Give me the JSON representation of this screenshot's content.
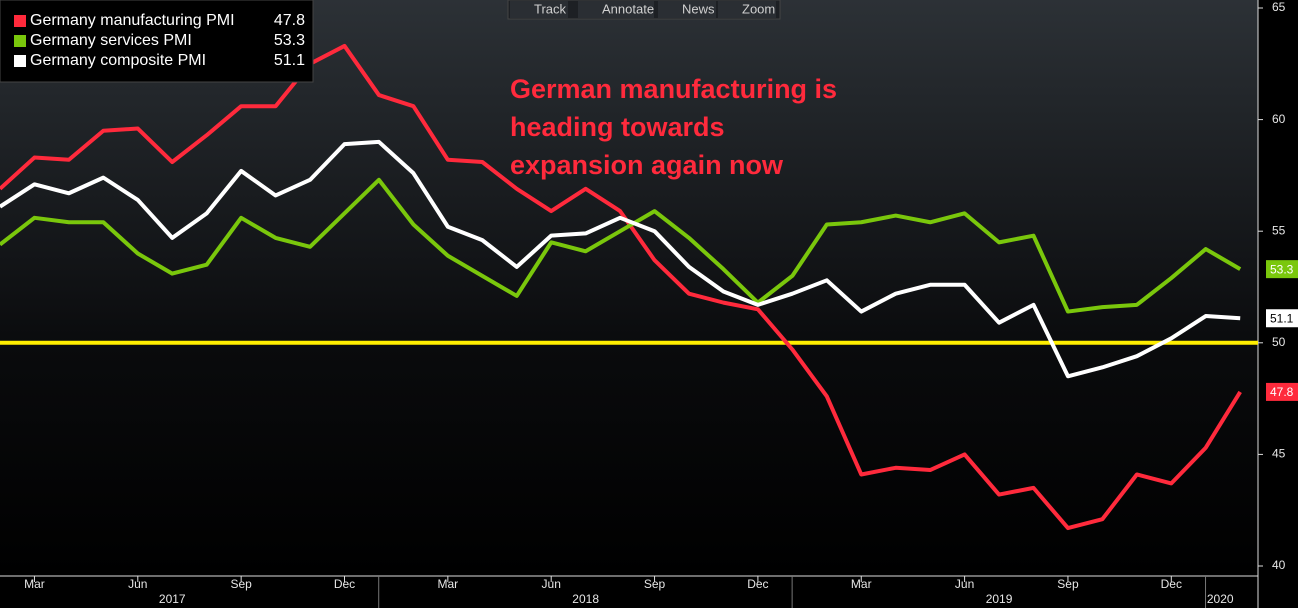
{
  "toolbar": [
    "Track",
    "Annotate",
    "News",
    "Zoom"
  ],
  "chart_data": {
    "type": "line",
    "annotation": [
      "German manufacturing is",
      "heading towards",
      "expansion again now"
    ],
    "categories": [
      null,
      "Mar",
      null,
      null,
      "Jun",
      null,
      null,
      "Sep",
      null,
      null,
      "Dec",
      null,
      null,
      "Mar",
      null,
      null,
      "Jun",
      null,
      null,
      "Sep",
      null,
      null,
      "Dec",
      null,
      null,
      "Mar",
      null,
      null,
      "Jun",
      null,
      null,
      "Sep",
      null,
      null,
      "Dec",
      null,
      null
    ],
    "years": [
      "2017",
      "2018",
      "2019",
      "2020"
    ],
    "series": [
      {
        "name": "Germany manufacturing PMI",
        "color": "#ff2a3c",
        "values": [
          56.9,
          58.3,
          58.2,
          59.5,
          59.6,
          58.1,
          59.3,
          60.6,
          60.6,
          62.5,
          63.3,
          61.1,
          60.6,
          58.2,
          58.1,
          56.9,
          55.9,
          56.9,
          55.9,
          53.7,
          52.2,
          51.8,
          51.5,
          49.7,
          47.6,
          44.1,
          44.4,
          44.3,
          45.0,
          43.2,
          43.5,
          41.7,
          42.1,
          44.1,
          43.7,
          45.3,
          47.8
        ]
      },
      {
        "name": "Germany services PMI",
        "color": "#7ac70c",
        "values": [
          54.4,
          55.6,
          55.4,
          55.4,
          54.0,
          53.1,
          53.5,
          55.6,
          54.7,
          54.3,
          55.8,
          57.3,
          55.3,
          53.9,
          53.0,
          52.1,
          54.5,
          54.1,
          55.0,
          55.9,
          54.7,
          53.3,
          51.8,
          53.0,
          55.3,
          55.4,
          55.7,
          55.4,
          55.8,
          54.5,
          54.8,
          51.4,
          51.6,
          51.7,
          52.9,
          54.2,
          53.3
        ]
      },
      {
        "name": "Germany composite PMI",
        "color": "#ffffff",
        "values": [
          56.1,
          57.1,
          56.7,
          57.4,
          56.4,
          54.7,
          55.8,
          57.7,
          56.6,
          57.3,
          58.9,
          59.0,
          57.6,
          55.2,
          54.6,
          53.4,
          54.8,
          54.9,
          55.6,
          55.0,
          53.4,
          52.3,
          51.7,
          52.2,
          52.8,
          51.4,
          52.2,
          52.6,
          52.6,
          50.9,
          51.7,
          48.5,
          48.9,
          49.4,
          50.2,
          51.2,
          51.1
        ]
      }
    ],
    "reference_line": {
      "value": 50,
      "color": "#ffee00"
    },
    "ylim": [
      40,
      65
    ],
    "yticks": [
      40,
      45,
      50,
      55,
      60,
      65
    ]
  }
}
